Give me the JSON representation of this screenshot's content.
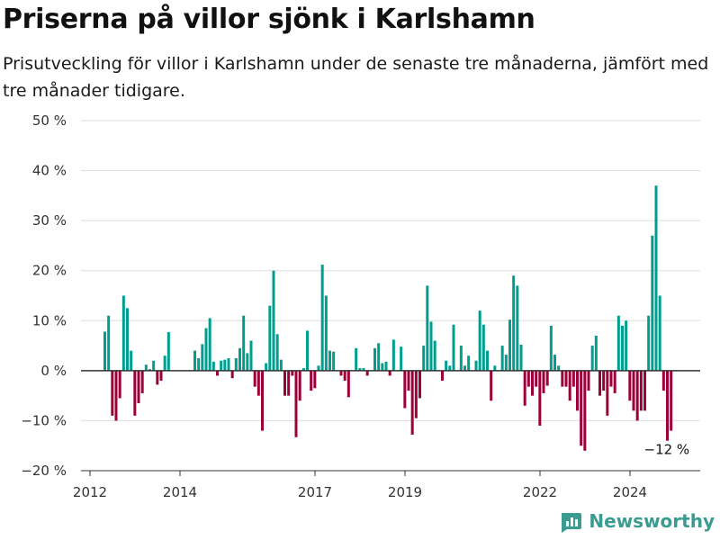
{
  "title": "Priserna på villor sjönk i Karlshamn",
  "subtitle": "Prisutveckling för villor i Karlshamn under de senaste tre månaderna, jämfört med tre månader tidigare.",
  "brand": "Newsworthy",
  "colors": {
    "positive": "#009e8f",
    "negative": "#9b0039",
    "grid": "#dddddd",
    "axis": "#333333"
  },
  "chart_data": {
    "type": "bar",
    "unit": "%",
    "ylim": [
      -20,
      50
    ],
    "yticks": [
      -20,
      -10,
      0,
      10,
      20,
      30,
      40,
      50
    ],
    "ytick_labels": [
      "−20 %",
      "−10 %",
      "0 %",
      "10 %",
      "20 %",
      "30 %",
      "40 %",
      "50 %"
    ],
    "xlim": [
      2012,
      2025.5
    ],
    "xticks": [
      2012,
      2014,
      2017,
      2019,
      2022,
      2024
    ],
    "xtick_labels": [
      "2012",
      "2014",
      "2017",
      "2019",
      "2022",
      "2024"
    ],
    "grid": true,
    "annotation": {
      "text": "−12 %",
      "x": 2024.83,
      "y": -12
    },
    "series": [
      {
        "start": 2012.33,
        "step_months": 1,
        "values": [
          7.8,
          11,
          -9,
          -10,
          -5.5,
          15,
          12.5,
          4,
          -9,
          -6.5,
          -4.5,
          1.2,
          0.3,
          2,
          -2.8,
          -2,
          3,
          7.7,
          0,
          0,
          0,
          0,
          0,
          0,
          4,
          2.5,
          5.3,
          8.5,
          10.5,
          1.8,
          -1,
          2,
          2.2,
          2.5,
          -1.5,
          2.5,
          4.5,
          11,
          3.5,
          6,
          -3.2,
          -5,
          -12,
          1.5,
          13,
          20,
          7.3,
          2.2,
          -5,
          -5,
          -1,
          -13.3,
          -6,
          0.5,
          8,
          -4,
          -3.5,
          1,
          21.2,
          15,
          4,
          3.8,
          0,
          -1,
          -2,
          -5.3,
          0,
          4.5,
          0.5,
          0.5,
          -1,
          0,
          4.5,
          5.5,
          1.5,
          1.8,
          -1,
          6.2,
          0,
          4.8,
          -7.5,
          -4,
          -12.8,
          -9.5,
          -5.5,
          5,
          17,
          9.8,
          6,
          0,
          -2,
          2,
          1,
          9.2,
          0,
          5,
          1,
          3,
          0,
          2,
          12,
          9.2,
          4,
          -6,
          1,
          0,
          5,
          3.2,
          10.2,
          19,
          17,
          5.2,
          -7,
          -3.2,
          -5,
          -3.2,
          -11,
          -4.5,
          -3,
          9,
          3.2,
          1,
          -3.2,
          -3.2,
          -6,
          -3.2,
          -8,
          -15,
          -16,
          -4,
          5,
          7,
          -5,
          -4,
          -9,
          -3.2,
          -4.5,
          11,
          9,
          10,
          -6,
          -8,
          -10,
          -8,
          -8,
          11,
          27,
          37,
          15,
          -4,
          -14,
          -12
        ]
      }
    ]
  }
}
